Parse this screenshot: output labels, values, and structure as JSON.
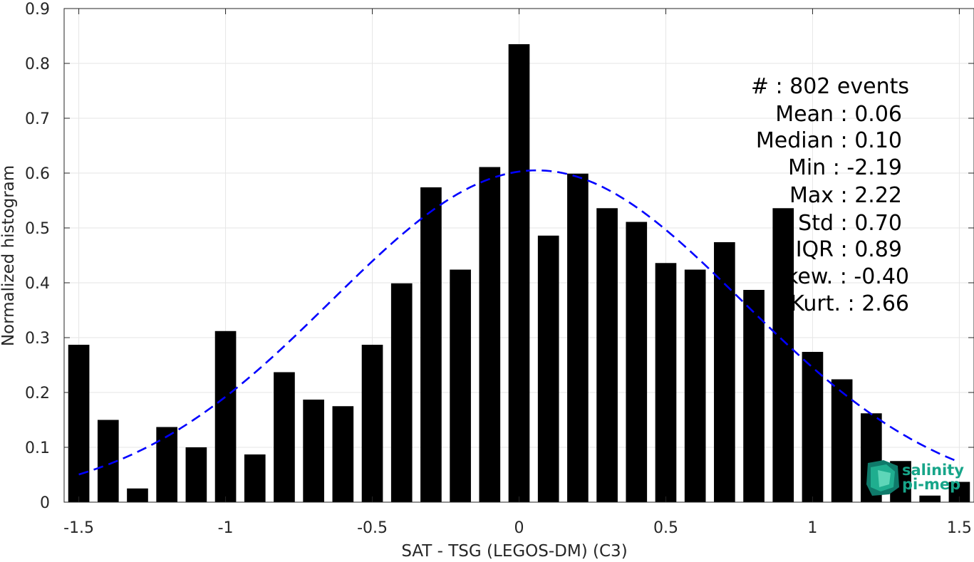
{
  "chart_data": {
    "type": "bar",
    "xlabel": "SAT - TSG (LEGOS-DM) (C3)",
    "ylabel": "Normalized histogram",
    "xlim": [
      -1.55,
      1.55
    ],
    "ylim": [
      0,
      0.9
    ],
    "x_ticks": [
      -1.5,
      -1,
      -0.5,
      0,
      0.5,
      1,
      1.5
    ],
    "x_tick_labels": [
      "-1.5",
      "-1",
      "-0.5",
      "0",
      "0.5",
      "1",
      "1.5"
    ],
    "y_ticks": [
      0,
      0.1,
      0.2,
      0.3,
      0.4,
      0.5,
      0.6,
      0.7,
      0.8,
      0.9
    ],
    "y_tick_labels": [
      "0",
      "0.1",
      "0.2",
      "0.3",
      "0.4",
      "0.5",
      "0.6",
      "0.7",
      "0.8",
      "0.9"
    ],
    "grid": true,
    "bar_color": "#000000",
    "bins": [
      -1.5,
      -1.4,
      -1.3,
      -1.2,
      -1.1,
      -1.0,
      -0.9,
      -0.8,
      -0.7,
      -0.6,
      -0.5,
      -0.4,
      -0.3,
      -0.2,
      -0.1,
      0.0,
      0.1,
      0.2,
      0.3,
      0.4,
      0.5,
      0.6,
      0.7,
      0.8,
      0.9,
      1.0,
      1.1,
      1.2,
      1.3,
      1.4,
      1.5
    ],
    "values": [
      0.287,
      0.15,
      0.025,
      0.137,
      0.1,
      0.312,
      0.087,
      0.237,
      0.187,
      0.175,
      0.287,
      0.399,
      0.574,
      0.424,
      0.611,
      0.835,
      0.486,
      0.599,
      0.536,
      0.511,
      0.436,
      0.424,
      0.474,
      0.387,
      0.536,
      0.274,
      0.224,
      0.162,
      0.075,
      0.012,
      0.037
    ],
    "fit_curve": {
      "type": "normal",
      "color": "#0000ff",
      "style": "dashed",
      "mean": 0.06,
      "std": 0.7,
      "peak": 0.605,
      "x_range": [
        -1.5,
        1.5
      ]
    },
    "stats": [
      {
        "label": "#  ",
        "value": ": 802 events"
      },
      {
        "label": "Mean",
        "value": " : 0.06"
      },
      {
        "label": "Median",
        "value": " : 0.10"
      },
      {
        "label": "Min",
        "value": " : -2.19"
      },
      {
        "label": "Max",
        "value": " : 2.22"
      },
      {
        "label": "Std",
        "value": " : 0.70"
      },
      {
        "label": "IQR",
        "value": " : 0.89"
      },
      {
        "label": "kew.",
        "value": " : -0.40"
      },
      {
        "label": "Kurt.",
        "value": " : 2.66"
      }
    ]
  },
  "logo": {
    "line1": "salinity",
    "line2": "pi-mep",
    "color": "#17a589"
  }
}
